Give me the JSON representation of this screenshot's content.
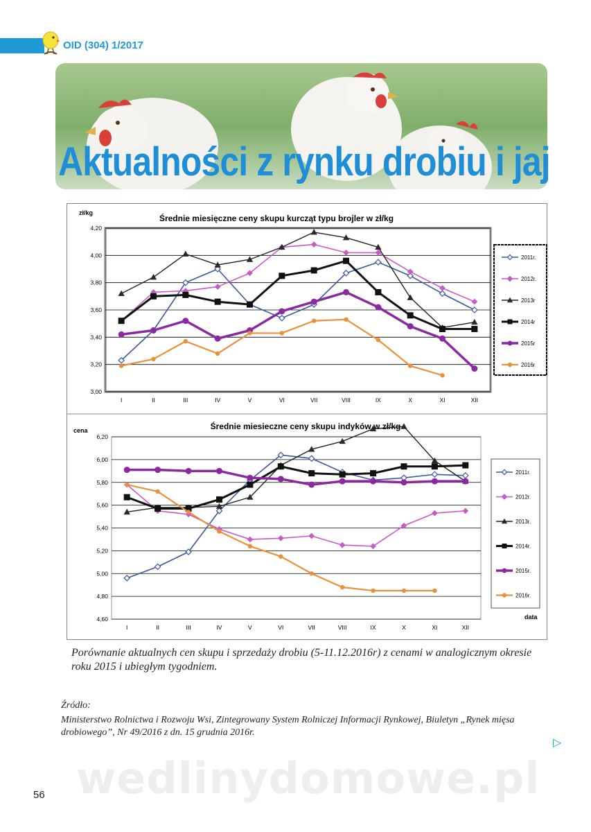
{
  "header": {
    "issue": "OID (304) 1/2017",
    "title": "Aktualności z rynku drobiu i jaj"
  },
  "colors": {
    "accent": "#1f9ad6",
    "2011": "#3b55a0",
    "2012": "#c85ac8",
    "2013": "#222222",
    "2014": "#111111",
    "2015": "#8b2aa0",
    "2016": "#e8913a"
  },
  "chart_data": [
    {
      "type": "line",
      "title": "Średnie miesięczne ceny skupu kurcząt typu brojler w zł/kg",
      "ylabel": "zł/kg",
      "xlabel": "",
      "categories": [
        "I",
        "II",
        "III",
        "IV",
        "V",
        "VI",
        "VII",
        "VIII",
        "IX",
        "X",
        "XI",
        "XII"
      ],
      "ylim": [
        3.0,
        4.2
      ],
      "yticks": [
        "4,20",
        "4,00",
        "3,80",
        "3,60",
        "3,40",
        "3,20",
        "3,00"
      ],
      "grid": true,
      "legend_position": "right",
      "series": [
        {
          "name": "2011r.",
          "values": [
            3.23,
            3.45,
            3.8,
            3.9,
            3.64,
            3.54,
            3.64,
            3.87,
            3.95,
            3.85,
            3.72,
            3.6
          ]
        },
        {
          "name": "2012r.",
          "values": [
            3.52,
            3.73,
            3.74,
            3.77,
            3.87,
            4.06,
            4.08,
            4.02,
            4.02,
            3.88,
            3.76,
            3.66
          ]
        },
        {
          "name": "2013r",
          "values": [
            3.72,
            3.84,
            4.01,
            3.93,
            3.97,
            4.06,
            4.17,
            4.13,
            4.06,
            3.69,
            3.47,
            3.51
          ]
        },
        {
          "name": "2014r",
          "values": [
            3.52,
            3.7,
            3.71,
            3.66,
            3.64,
            3.85,
            3.89,
            3.96,
            3.73,
            3.56,
            3.46,
            3.46
          ]
        },
        {
          "name": "2015r",
          "values": [
            3.42,
            3.45,
            3.52,
            3.39,
            3.45,
            3.59,
            3.66,
            3.73,
            3.62,
            3.48,
            3.39,
            3.17
          ]
        },
        {
          "name": "2016r",
          "values": [
            3.19,
            3.24,
            3.37,
            3.28,
            3.43,
            3.43,
            3.52,
            3.53,
            3.38,
            3.19,
            3.12,
            null
          ]
        }
      ]
    },
    {
      "type": "line",
      "title": "Średnie miesieczne ceny skupu indyków w zł/kg",
      "ylabel": "cena",
      "xlabel": "data",
      "categories": [
        "I",
        "II",
        "III",
        "IV",
        "V",
        "VI",
        "VII",
        "VIII",
        "IX",
        "X",
        "XI",
        "XII"
      ],
      "ylim": [
        4.6,
        6.2
      ],
      "yticks": [
        "6,20",
        "6,00",
        "5,80",
        "5,60",
        "5,40",
        "5,20",
        "5,00",
        "4,80",
        "4,60"
      ],
      "grid": true,
      "legend_position": "right",
      "series": [
        {
          "name": "2011r.",
          "values": [
            4.96,
            5.06,
            5.19,
            5.55,
            5.82,
            6.04,
            6.01,
            5.89,
            5.82,
            5.84,
            5.87,
            5.86
          ]
        },
        {
          "name": "2012r.",
          "values": [
            5.78,
            5.55,
            5.52,
            5.39,
            5.3,
            5.31,
            5.33,
            5.25,
            5.24,
            5.42,
            5.53,
            5.55
          ]
        },
        {
          "name": "2013r.",
          "values": [
            5.54,
            5.58,
            5.58,
            5.59,
            5.67,
            5.95,
            6.09,
            6.16,
            6.27,
            6.29,
            5.99,
            5.81
          ]
        },
        {
          "name": "2014r.",
          "values": [
            5.67,
            5.57,
            5.57,
            5.65,
            5.78,
            5.94,
            5.88,
            5.87,
            5.88,
            5.94,
            5.94,
            5.95
          ]
        },
        {
          "name": "2015r.",
          "values": [
            5.91,
            5.91,
            5.9,
            5.9,
            5.84,
            5.83,
            5.78,
            5.81,
            5.81,
            5.8,
            5.81,
            5.81
          ]
        },
        {
          "name": "2016r.",
          "values": [
            5.78,
            5.72,
            5.54,
            5.37,
            5.24,
            5.15,
            5.0,
            4.88,
            4.85,
            4.85,
            4.85,
            null
          ]
        }
      ]
    }
  ],
  "caption": "Porównanie aktualnych cen skupu i sprzedaży drobiu (5-11.12.2016r) z cenami w analogicznym okresie roku 2015 i ubiegłym tygodniem.",
  "source": {
    "heading": "Źródło:",
    "text": "Ministerstwo Rolnictwa i Rozwoju Wsi, Zintegrowany System Rolniczej Informacji Rynkowej, Biuletyn „Rynek mięsa drobiowego”, Nr 49/2016 z dn. 15 grudnia 2016r."
  },
  "watermark": "wedlinydomowe.pl",
  "page_number": "56"
}
